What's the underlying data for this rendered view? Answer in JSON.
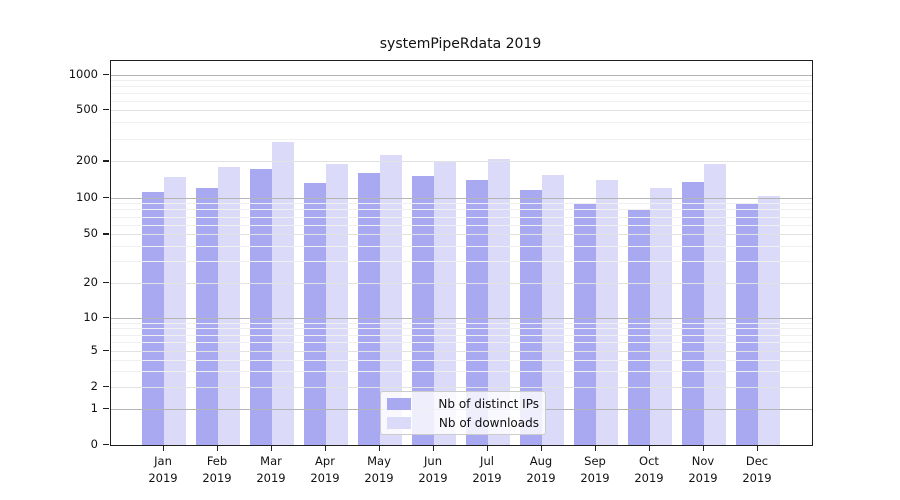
{
  "title": "systemPipeRdata 2019",
  "chart_data": {
    "type": "bar",
    "title": "systemPipeRdata 2019",
    "xlabel": "",
    "ylabel": "",
    "categories": [
      "Jan 2019",
      "Feb 2019",
      "Mar 2019",
      "Apr 2019",
      "May 2019",
      "Jun 2019",
      "Jul 2019",
      "Aug 2019",
      "Sep 2019",
      "Oct 2019",
      "Nov 2019",
      "Dec 2019"
    ],
    "series": [
      {
        "name": "Nb of distinct IPs",
        "color": "#a9a9f2",
        "values": [
          112,
          120,
          172,
          132,
          160,
          152,
          140,
          116,
          89,
          81,
          134,
          88
        ]
      },
      {
        "name": "Nb of downloads",
        "color": "#dbdbf9",
        "values": [
          148,
          180,
          280,
          190,
          222,
          196,
          207,
          155,
          140,
          121,
          191,
          104
        ]
      }
    ],
    "y_scale": "symlog",
    "y_ticks": [
      0,
      1,
      2,
      5,
      10,
      20,
      50,
      100,
      200,
      500,
      1000
    ],
    "ylim": [
      0,
      1400
    ],
    "grid": "horizontal-major-and-minor",
    "legend_position": "lower-center-inside",
    "legend": [
      "Nb of distinct IPs",
      "Nb of downloads"
    ]
  },
  "colors": {
    "background": "#ffffff",
    "axis": "#1f1f1f",
    "grid_decade": "#b5b5b5",
    "grid_major": "#e2e2e2",
    "grid_minor": "#f0f0f0",
    "legend_border": "#cccccc",
    "text": "#111111"
  }
}
